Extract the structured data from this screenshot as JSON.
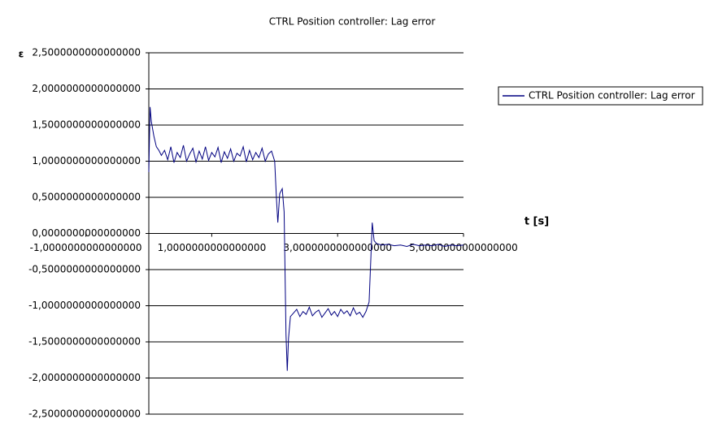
{
  "chart_data": {
    "type": "line",
    "title": "CTRL Position controller: Lag error",
    "y_label": "ε",
    "x_label": "t [s]",
    "x": [
      0,
      0.02,
      0.04,
      0.08,
      0.12,
      0.16,
      0.2,
      0.25,
      0.3,
      0.35,
      0.4,
      0.45,
      0.5,
      0.55,
      0.6,
      0.65,
      0.7,
      0.75,
      0.8,
      0.85,
      0.9,
      0.95,
      1.0,
      1.05,
      1.1,
      1.15,
      1.2,
      1.25,
      1.3,
      1.35,
      1.4,
      1.45,
      1.5,
      1.55,
      1.6,
      1.65,
      1.7,
      1.75,
      1.8,
      1.85,
      1.9,
      1.95,
      2.0,
      2.03,
      2.05,
      2.08,
      2.12,
      2.15,
      2.18,
      2.2,
      2.22,
      2.25,
      2.3,
      2.35,
      2.4,
      2.45,
      2.5,
      2.55,
      2.6,
      2.65,
      2.7,
      2.75,
      2.8,
      2.85,
      2.9,
      2.95,
      3.0,
      3.05,
      3.1,
      3.15,
      3.2,
      3.25,
      3.3,
      3.35,
      3.4,
      3.45,
      3.5,
      3.53,
      3.55,
      3.58,
      3.62,
      3.7,
      3.8,
      3.9,
      4.0,
      4.1,
      4.2,
      4.3,
      4.4,
      4.5,
      4.6,
      4.7,
      4.8,
      4.9,
      5.0
    ],
    "series": [
      {
        "name": "CTRL Position controller: Lag error",
        "color": "#000080",
        "values": [
          0.85,
          1.75,
          1.55,
          1.35,
          1.2,
          1.15,
          1.08,
          1.15,
          1.02,
          1.2,
          0.98,
          1.12,
          1.05,
          1.22,
          1.0,
          1.1,
          1.18,
          0.99,
          1.14,
          1.03,
          1.2,
          1.01,
          1.12,
          1.06,
          1.19,
          0.98,
          1.13,
          1.04,
          1.17,
          1.0,
          1.11,
          1.07,
          1.2,
          0.99,
          1.15,
          1.02,
          1.12,
          1.05,
          1.18,
          1.0,
          1.1,
          1.14,
          1.0,
          0.45,
          0.15,
          0.55,
          0.62,
          0.3,
          -1.4,
          -1.9,
          -1.45,
          -1.15,
          -1.1,
          -1.05,
          -1.15,
          -1.08,
          -1.12,
          -1.02,
          -1.14,
          -1.09,
          -1.06,
          -1.16,
          -1.1,
          -1.04,
          -1.13,
          -1.08,
          -1.15,
          -1.05,
          -1.11,
          -1.07,
          -1.14,
          -1.03,
          -1.12,
          -1.09,
          -1.16,
          -1.08,
          -0.95,
          -0.3,
          0.15,
          -0.1,
          -0.14,
          -0.16,
          -0.15,
          -0.17,
          -0.16,
          -0.18,
          -0.15,
          -0.17,
          -0.16,
          -0.17,
          -0.15,
          -0.18,
          -0.16,
          -0.17,
          -0.16
        ]
      }
    ],
    "xlim": [
      0,
      5
    ],
    "ylim": [
      -2.5,
      2.5
    ],
    "xticks": [
      {
        "value": -1,
        "label": "-1,0000000000000000"
      },
      {
        "value": 1,
        "label": "1,0000000000000000"
      },
      {
        "value": 3,
        "label": "3,0000000000000000"
      },
      {
        "value": 5,
        "label": "5,0000000000000000"
      }
    ],
    "yticks": [
      {
        "value": 2.5,
        "label": "2,5000000000000000"
      },
      {
        "value": 2,
        "label": "2,0000000000000000"
      },
      {
        "value": 1.5,
        "label": "1,5000000000000000"
      },
      {
        "value": 1,
        "label": "1,0000000000000000"
      },
      {
        "value": 0.5,
        "label": "0,5000000000000000"
      },
      {
        "value": 0,
        "label": "0,0000000000000000"
      },
      {
        "value": -0.5,
        "label": "-0,5000000000000000"
      },
      {
        "value": -1,
        "label": "-1,0000000000000000"
      },
      {
        "value": -1.5,
        "label": "-1,5000000000000000"
      },
      {
        "value": -2,
        "label": "-2,0000000000000000"
      },
      {
        "value": -2.5,
        "label": "-2,5000000000000000"
      }
    ],
    "grid": true,
    "legend": "right"
  }
}
